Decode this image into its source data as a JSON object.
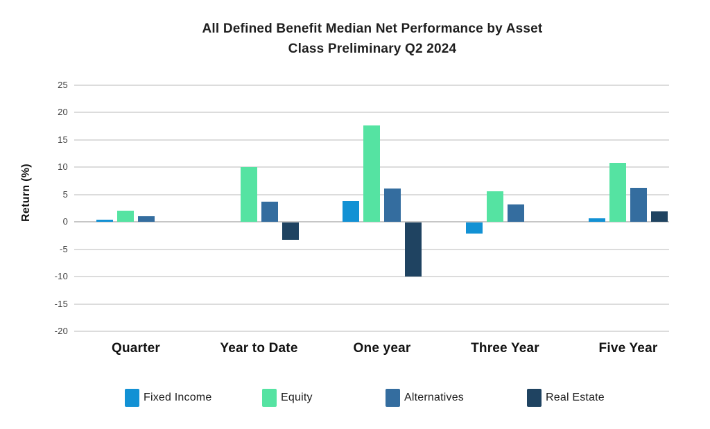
{
  "title": {
    "line1": "All Defined Benefit Median Net Performance by Asset",
    "line2": "Class Preliminary Q2 2024"
  },
  "chart_data": {
    "type": "bar",
    "title": "All Defined Benefit Median Net Performance by Asset Class Preliminary Q2 2024",
    "ylabel": "Return (%)",
    "xlabel": "",
    "categories": [
      "Quarter",
      "Year to Date",
      "One year",
      "Three Year",
      "Five Year"
    ],
    "series": [
      {
        "name": "Fixed Income",
        "color": "#1291d4",
        "values": [
          0.4,
          0,
          3.8,
          -2,
          0.7
        ]
      },
      {
        "name": "Equity",
        "color": "#55e3a2",
        "values": [
          2.1,
          10.1,
          17.7,
          5.6,
          10.8
        ]
      },
      {
        "name": "Alternatives",
        "color": "#346d9f",
        "values": [
          1.0,
          3.7,
          6.1,
          3.2,
          6.3
        ]
      },
      {
        "name": "Real Estate",
        "color": "#1f4361",
        "values": [
          0,
          -3.1,
          -9.8,
          0,
          1.9
        ]
      }
    ],
    "ylim": [
      -20,
      25
    ],
    "ytick_step": 5,
    "yticks": [
      25,
      20,
      15,
      10,
      5,
      0,
      -5,
      -10,
      -15,
      -20
    ],
    "grid": true,
    "legend_position": "bottom",
    "colors": {
      "background": "#ffffff",
      "gridline": "#dcdcdc",
      "zero_line": "#c6c6c6",
      "title_text": "#1f1f1f",
      "axis_tick_text": "#3f3f3f",
      "category_text": "#111111",
      "legend_text": "#1c1c1c"
    }
  }
}
